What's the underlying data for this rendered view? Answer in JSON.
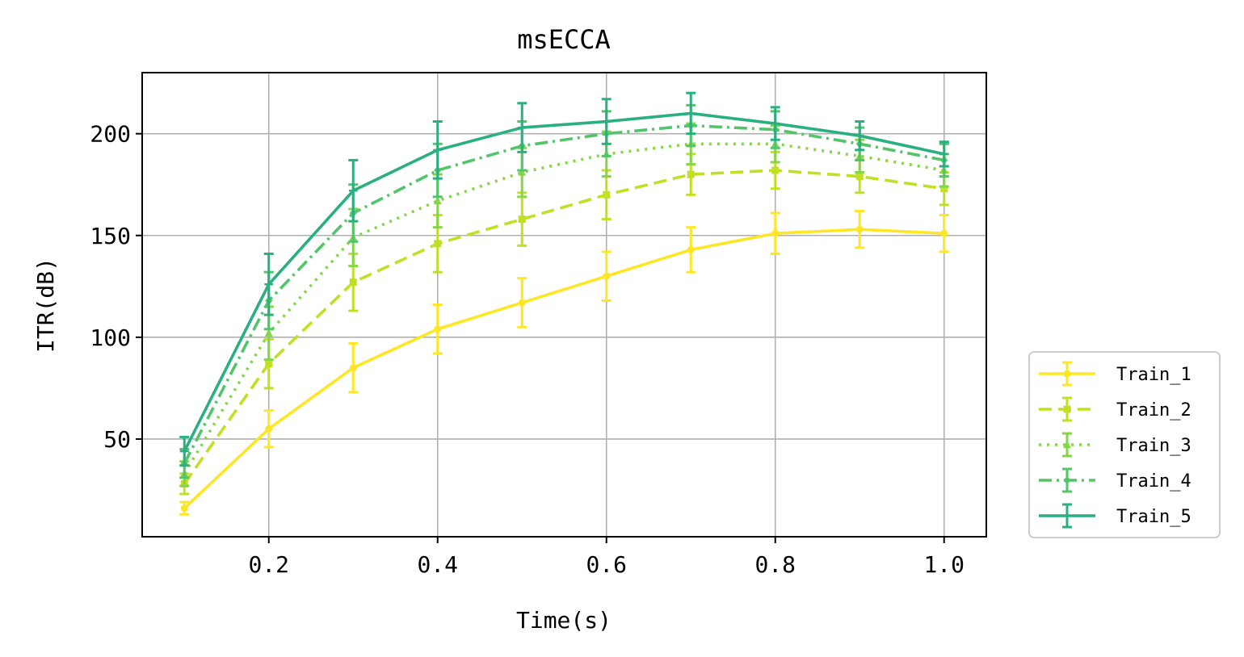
{
  "chart_data": {
    "type": "line",
    "title": "msECCA",
    "xlabel": "Time(s)",
    "ylabel": "ITR(dB)",
    "xlim": [
      0.05,
      1.05
    ],
    "ylim": [
      2,
      230
    ],
    "x_ticks": [
      0.2,
      0.4,
      0.6,
      0.8,
      1.0
    ],
    "x_tick_labels": [
      "0.2",
      "0.4",
      "0.6",
      "0.8",
      "1.0"
    ],
    "y_ticks": [
      50,
      100,
      150,
      200
    ],
    "y_tick_labels": [
      "50",
      "100",
      "150",
      "200"
    ],
    "grid": true,
    "legend_position": "outside-lower-right",
    "x": [
      0.1,
      0.2,
      0.3,
      0.4,
      0.5,
      0.6,
      0.7,
      0.8,
      0.9,
      1.0
    ],
    "series": [
      {
        "name": "Train_1",
        "color": "#fde725",
        "dash": "solid",
        "marker": "circle",
        "values": [
          16,
          55,
          85,
          104,
          117,
          130,
          143,
          151,
          153,
          151
        ],
        "errors": [
          3,
          9,
          12,
          12,
          12,
          12,
          11,
          10,
          9,
          9
        ]
      },
      {
        "name": "Train_2",
        "color": "#c2df23",
        "dash": "dashed",
        "marker": "square",
        "values": [
          28,
          87,
          127,
          146,
          158,
          170,
          180,
          182,
          179,
          173
        ],
        "errors": [
          5,
          12,
          14,
          14,
          13,
          12,
          10,
          9,
          8,
          8
        ]
      },
      {
        "name": "Train_3",
        "color": "#86d549",
        "dash": "dotted",
        "marker": "triangle",
        "values": [
          33,
          102,
          149,
          167,
          181,
          190,
          195,
          195,
          189,
          182
        ],
        "errors": [
          6,
          13,
          14,
          13,
          12,
          11,
          10,
          9,
          8,
          8
        ]
      },
      {
        "name": "Train_4",
        "color": "#52c569",
        "dash": "dashdot",
        "marker": "diamond",
        "values": [
          38,
          118,
          161,
          182,
          194,
          200,
          204,
          202,
          195,
          187
        ],
        "errors": [
          7,
          14,
          14,
          13,
          12,
          11,
          10,
          9,
          8,
          8
        ]
      },
      {
        "name": "Train_5",
        "color": "#2ab07f",
        "dash": "solid",
        "marker": "plus",
        "values": [
          44,
          126,
          172,
          192,
          203,
          206,
          210,
          205,
          199,
          190
        ],
        "errors": [
          7,
          15,
          15,
          14,
          12,
          11,
          10,
          8,
          7,
          6
        ]
      }
    ]
  }
}
